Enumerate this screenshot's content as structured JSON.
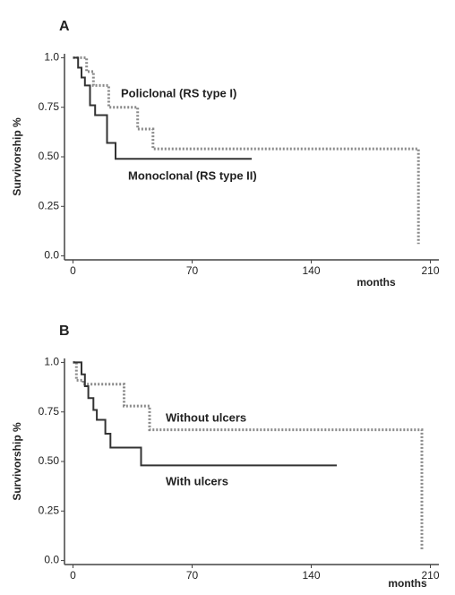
{
  "chart_data": [
    {
      "type": "line",
      "title": "A",
      "ylabel": "Survivorship %",
      "xlabel": "months",
      "xlim": [
        -5,
        215
      ],
      "ylim": [
        -0.02,
        1.02
      ],
      "xticks": [
        0,
        70,
        140,
        210
      ],
      "yticks": [
        {
          "value": 0,
          "label": "0.0"
        },
        0.25,
        {
          "value": 0.5,
          "label": "0.50"
        },
        0.75,
        {
          "value": 1,
          "label": "1.0"
        }
      ],
      "series": [
        {
          "name": "Policlonal (RS type I)",
          "color": "#8a8a8a",
          "linestyle": "dotted",
          "x": [
            0,
            8,
            8,
            12,
            12,
            21,
            21,
            38,
            38,
            47,
            47,
            203,
            203
          ],
          "values": [
            1,
            1,
            0.93,
            0.93,
            0.86,
            0.86,
            0.75,
            0.75,
            0.64,
            0.64,
            0.54,
            0.54,
            0.06
          ]
        },
        {
          "name": "Monoclonal (RS type II)",
          "color": "#333333",
          "linestyle": "solid",
          "x": [
            0,
            3,
            3,
            5,
            5,
            7,
            7,
            10,
            10,
            13,
            13,
            20,
            20,
            25,
            25,
            105
          ],
          "values": [
            1,
            1,
            0.95,
            0.95,
            0.9,
            0.9,
            0.86,
            0.86,
            0.76,
            0.76,
            0.71,
            0.71,
            0.57,
            0.57,
            0.49,
            0.49
          ]
        }
      ]
    },
    {
      "type": "line",
      "title": "B",
      "ylabel": "Survivorship %",
      "xlabel": "months",
      "xlim": [
        -5,
        215
      ],
      "ylim": [
        -0.02,
        1.02
      ],
      "xticks": [
        0,
        70,
        140,
        210
      ],
      "yticks": [
        {
          "value": 0,
          "label": "0.0"
        },
        0.25,
        {
          "value": 0.5,
          "label": "0.50"
        },
        0.75,
        {
          "value": 1,
          "label": "1.0"
        }
      ],
      "series": [
        {
          "name": "Without ulcers",
          "color": "#8a8a8a",
          "linestyle": "dotted",
          "x": [
            0,
            2,
            2,
            6,
            6,
            30,
            30,
            45,
            45,
            205,
            205
          ],
          "values": [
            1,
            1,
            0.91,
            0.91,
            0.89,
            0.89,
            0.78,
            0.78,
            0.66,
            0.66,
            0.05
          ]
        },
        {
          "name": "With ulcers",
          "color": "#333333",
          "linestyle": "solid",
          "x": [
            0,
            5,
            5,
            7,
            7,
            9,
            9,
            12,
            12,
            14,
            14,
            19,
            19,
            22,
            22,
            40,
            40,
            155
          ],
          "values": [
            1,
            1,
            0.94,
            0.94,
            0.88,
            0.88,
            0.82,
            0.82,
            0.76,
            0.76,
            0.71,
            0.71,
            0.64,
            0.64,
            0.57,
            0.57,
            0.48,
            0.48
          ]
        }
      ]
    }
  ]
}
